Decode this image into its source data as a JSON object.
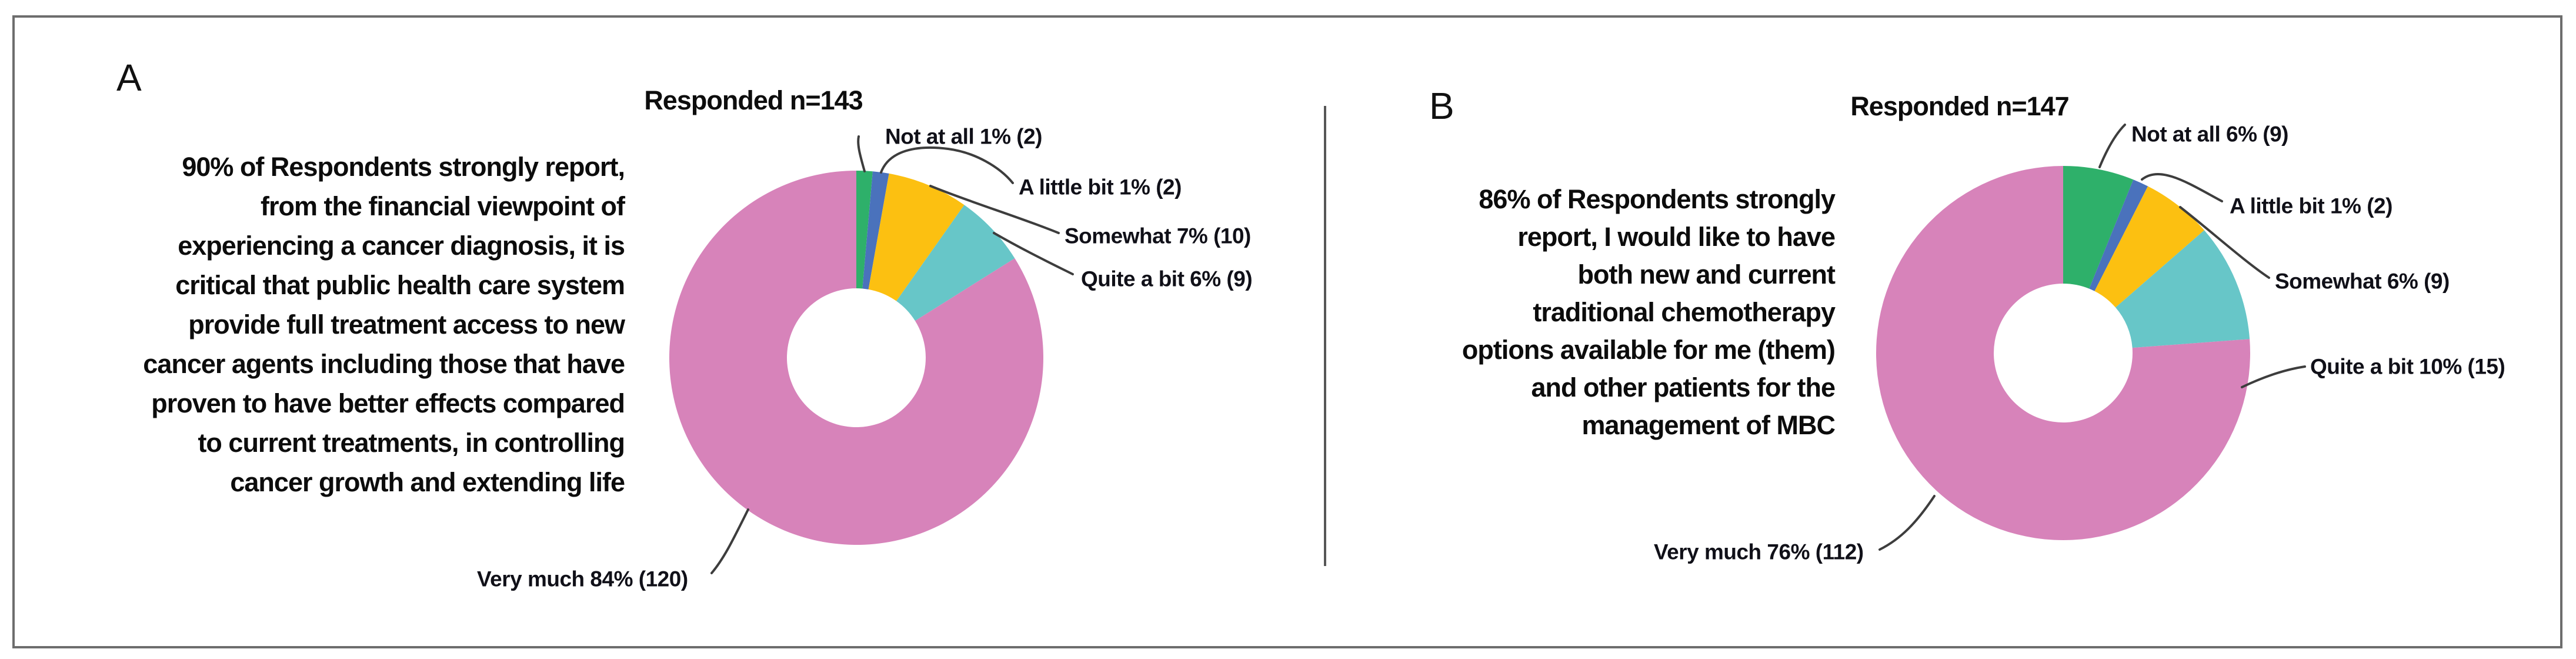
{
  "figure": {
    "panels": [
      {
        "panel_label": "A",
        "title": "Responded n=143",
        "statement": "90% of Respondents strongly report,\nfrom the financial viewpoint of\nexperiencing a cancer diagnosis, it is\ncritical that public health care system\nprovide full treatment access to new\ncancer agents including those that have\nproven to have better effects compared\nto current treatments, in controlling\ncancer growth and extending life"
      },
      {
        "panel_label": "B",
        "title": "Responded n=147",
        "statement": "86% of Respondents strongly\nreport, I would like to have\nboth new and current\ntraditional chemotherapy\noptions available for me (them)\nand other patients for the\nmanagement of MBC"
      }
    ]
  },
  "chart_data": [
    {
      "type": "pie",
      "subtype": "donut",
      "panel": "A",
      "title": "Responded n=143",
      "n_responded": 143,
      "categories": [
        "Not at all",
        "A little bit",
        "Somewhat",
        "Quite a bit",
        "Very much"
      ],
      "values": [
        2,
        2,
        10,
        9,
        120
      ],
      "percents": [
        1,
        1,
        7,
        6,
        84
      ],
      "slice_labels": [
        "Not at all 1% (2)",
        "A little bit 1% (2)",
        "Somewhat 7% (10)",
        "Quite a bit 6% (9)",
        "Very much 84% (120)"
      ],
      "colors": [
        "#2eb06a",
        "#4a72bc",
        "#fcc011",
        "#67c6c8",
        "#d783ba"
      ],
      "start_angle": "top",
      "direction": "clockwise",
      "legend_position": "callout-labels",
      "grid": false,
      "annotation": "90% of Respondents strongly report, from the financial viewpoint of experiencing a cancer diagnosis, it is critical that public health care system provide full treatment access to new cancer agents including those that have proven to have better effects compared to current treatments, in controlling cancer growth and extending life"
    },
    {
      "type": "pie",
      "subtype": "donut",
      "panel": "B",
      "title": "Responded n=147",
      "n_responded": 147,
      "categories": [
        "Not at all",
        "A little bit",
        "Somewhat",
        "Quite a bit",
        "Very much"
      ],
      "values": [
        9,
        2,
        9,
        15,
        112
      ],
      "percents": [
        6,
        1,
        6,
        10,
        76
      ],
      "slice_labels": [
        "Not at all 6% (9)",
        "A little bit 1% (2)",
        "Somewhat 6% (9)",
        "Quite a bit 10% (15)",
        "Very much 76% (112)"
      ],
      "colors": [
        "#2eb06a",
        "#4a72bc",
        "#fcc011",
        "#67c6c8",
        "#d783ba"
      ],
      "start_angle": "top",
      "direction": "clockwise",
      "legend_position": "callout-labels",
      "grid": false,
      "annotation": "86% of Respondents strongly report, I would like to have both new and current traditional chemotherapy options available for me (them) and other patients for the management of MBC"
    }
  ],
  "style": {
    "border_color": "#6d6d6d",
    "divider_color": "#575757",
    "leader_line_color": "#3d3d3d",
    "text_color": "#0d0d0d",
    "background": "#ffffff"
  }
}
